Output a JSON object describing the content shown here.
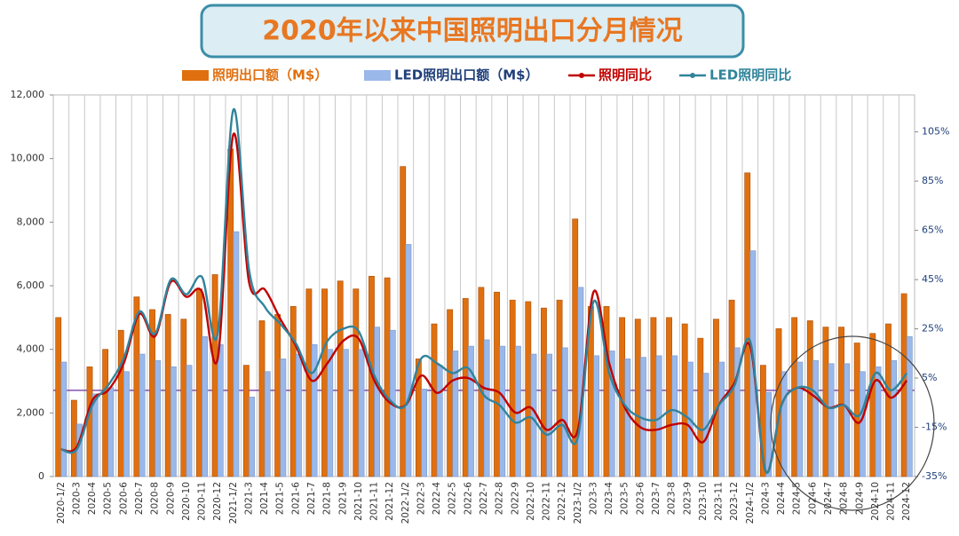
{
  "chart_data": {
    "type": "bar_line",
    "title": "2020年以来中国照明出口分月情况",
    "categories": [
      "2020-1/2",
      "2020-3",
      "2020-4",
      "2020-5",
      "2020-6",
      "2020-7",
      "2020-8",
      "2020-9",
      "2020-10",
      "2020-11",
      "2020-12",
      "2021-1/2",
      "2021-3",
      "2021-4",
      "2021-5",
      "2021-6",
      "2021-7",
      "2021-8",
      "2021-9",
      "2021-10",
      "2021-11",
      "2021-12",
      "2022-1/2",
      "2022-3",
      "2022-4",
      "2022-5",
      "2022-6",
      "2022-7",
      "2022-8",
      "2022-9",
      "2022-10",
      "2022-11",
      "2022-12",
      "2023-1/2",
      "2023-3",
      "2023-4",
      "2023-5",
      "2023-6",
      "2023-7",
      "2023-8",
      "2023-9",
      "2023-10",
      "2023-11",
      "2023-12",
      "2024-1/2",
      "2024-3",
      "2024-4",
      "2024-5",
      "2024-6",
      "2024-7",
      "2024-8",
      "2024-9",
      "2024-10",
      "2024-11",
      "2024-12"
    ],
    "series": [
      {
        "name": "照明出口额（M$）",
        "type": "bar",
        "color": "#e0700f",
        "values": [
          5000,
          2400,
          3450,
          4000,
          4600,
          5650,
          5250,
          5100,
          4950,
          5900,
          6350,
          10300,
          3500,
          4900,
          5100,
          5350,
          5900,
          5900,
          6150,
          5900,
          6300,
          6250,
          9750,
          3700,
          4800,
          5250,
          5600,
          5950,
          5800,
          5550,
          5500,
          5300,
          5550,
          8100,
          5350,
          5350,
          5000,
          4950,
          5000,
          5000,
          4800,
          4350,
          4950,
          5550,
          9550,
          3500,
          4650,
          5000,
          4900,
          4700,
          4700,
          4200,
          4500,
          4800,
          5750
        ]
      },
      {
        "name": "LED照明出口额（M$）",
        "type": "bar",
        "color": "#9ab8ea",
        "values": [
          3600,
          1650,
          2600,
          2800,
          3300,
          3850,
          3650,
          3450,
          3500,
          4400,
          4150,
          7700,
          2500,
          3300,
          3700,
          3850,
          4150,
          4000,
          4000,
          4000,
          4700,
          4600,
          7300,
          2750,
          3500,
          3950,
          4100,
          4300,
          4100,
          4100,
          3850,
          3850,
          4050,
          5950,
          3800,
          3950,
          3700,
          3750,
          3800,
          3800,
          3600,
          3250,
          3600,
          4050,
          7100,
          2650,
          3300,
          3600,
          3650,
          3550,
          3550,
          3300,
          3450,
          3650,
          4400
        ]
      },
      {
        "name": "照明同比",
        "type": "line",
        "axis": "y2",
        "color": "#c00000",
        "values": [
          -24,
          -23,
          -4,
          0,
          11,
          31,
          22,
          44,
          38,
          40,
          13,
          104,
          44,
          41,
          29,
          18,
          4,
          11,
          20,
          21,
          4,
          -5,
          -6,
          6,
          -1,
          4,
          5,
          1,
          -1,
          -9,
          -7,
          -16,
          -12,
          -16,
          40,
          11,
          -7,
          -15,
          -16,
          -14,
          -14,
          -21,
          -6,
          3,
          18,
          -33,
          -6,
          1,
          -2,
          -7,
          -6,
          -13,
          4,
          -3,
          4
        ]
      },
      {
        "name": "LED照明同比",
        "type": "line",
        "axis": "y2",
        "color": "#31849b",
        "values": [
          -24,
          -24,
          -6,
          2,
          13,
          32,
          23,
          45,
          39,
          46,
          23,
          114,
          49,
          34,
          27,
          19,
          7,
          20,
          25,
          24,
          6,
          -4,
          -6,
          13,
          11,
          7,
          9,
          -2,
          -6,
          -13,
          -11,
          -18,
          -14,
          -19,
          36,
          7,
          -6,
          -11,
          -12,
          -8,
          -11,
          -16,
          -6,
          2,
          20,
          -33,
          -6,
          1,
          0,
          -7,
          -6,
          -10,
          7,
          0,
          7
        ]
      }
    ],
    "ylim": [
      0,
      12000
    ],
    "yticks": [
      0,
      {
        "value": 2000,
        "label": "2,000"
      },
      {
        "value": 4000,
        "label": "4,000"
      },
      {
        "value": 6000,
        "label": "6,000"
      },
      {
        "value": 8000,
        "label": "8,000"
      },
      {
        "value": 10000,
        "label": "10,000"
      },
      {
        "value": 12000,
        "label": "12,000"
      }
    ],
    "y2lim": [
      -35,
      120
    ],
    "y2ticks": [
      {
        "value": -35,
        "label": "-35%"
      },
      {
        "value": -15,
        "label": "-15%"
      },
      {
        "value": 5,
        "label": "5%"
      },
      {
        "value": 25,
        "label": "25%"
      },
      {
        "value": 45,
        "label": "45%"
      },
      {
        "value": 65,
        "label": "65%"
      },
      {
        "value": 85,
        "label": "85%"
      },
      {
        "value": 105,
        "label": "105%"
      }
    ]
  }
}
